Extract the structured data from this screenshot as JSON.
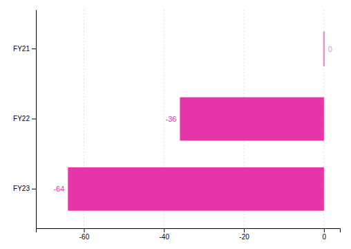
{
  "chart_data": {
    "type": "bar",
    "orientation": "horizontal",
    "categories": [
      "FY23",
      "FY22",
      "FY21"
    ],
    "values": [
      -64,
      -36,
      0
    ],
    "colors": [
      "#e535a8",
      "#e535a8",
      "#f090c8"
    ],
    "xlim": [
      -72,
      4
    ],
    "xticks": [
      -60,
      -40,
      -20,
      0
    ],
    "grid": true,
    "data_labels": true
  }
}
